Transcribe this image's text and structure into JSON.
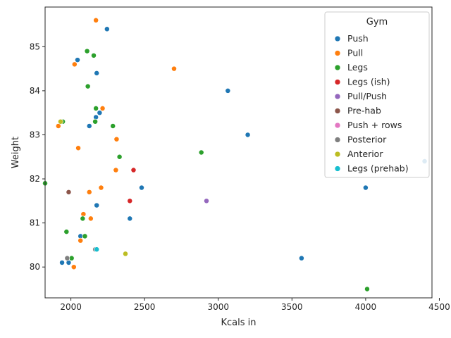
{
  "chart_data": {
    "type": "scatter",
    "xlabel": "Kcals in",
    "ylabel": "Weight",
    "xlim": [
      1825,
      4450
    ],
    "ylim": [
      79.3,
      85.9
    ],
    "xticks": [
      2000,
      2500,
      3000,
      3500,
      4000,
      4500
    ],
    "yticks": [
      80,
      81,
      82,
      83,
      84,
      85
    ],
    "grid": false,
    "legend": {
      "title": "Gym",
      "placement": "top-right"
    },
    "series": [
      {
        "name": "Push",
        "color": "#1f77b4",
        "points": [
          [
            2245,
            85.4
          ],
          [
            2045,
            84.7
          ],
          [
            2175,
            84.4
          ],
          [
            3065,
            84.0
          ],
          [
            2195,
            83.5
          ],
          [
            2170,
            83.4
          ],
          [
            2125,
            83.2
          ],
          [
            3200,
            83.0
          ],
          [
            4400,
            82.4
          ],
          [
            2480,
            81.8
          ],
          [
            4000,
            81.8
          ],
          [
            2175,
            81.4
          ],
          [
            2400,
            81.1
          ],
          [
            2065,
            80.7
          ],
          [
            1940,
            80.1
          ],
          [
            1985,
            80.1
          ],
          [
            3565,
            80.2
          ]
        ]
      },
      {
        "name": "Pull",
        "color": "#ff7f0e",
        "points": [
          [
            2170,
            85.6
          ],
          [
            2025,
            84.6
          ],
          [
            2700,
            84.5
          ],
          [
            2215,
            83.6
          ],
          [
            1915,
            83.2
          ],
          [
            2310,
            82.9
          ],
          [
            2050,
            82.7
          ],
          [
            2305,
            82.2
          ],
          [
            2205,
            81.8
          ],
          [
            2125,
            81.7
          ],
          [
            2085,
            81.2
          ],
          [
            2135,
            81.1
          ],
          [
            2065,
            80.6
          ],
          [
            2020,
            80.0
          ]
        ]
      },
      {
        "name": "Legs",
        "color": "#2ca02c",
        "points": [
          [
            2110,
            84.9
          ],
          [
            2155,
            84.8
          ],
          [
            2115,
            84.1
          ],
          [
            2170,
            83.6
          ],
          [
            2165,
            83.3
          ],
          [
            2285,
            83.2
          ],
          [
            1945,
            83.3
          ],
          [
            2885,
            82.6
          ],
          [
            2330,
            82.5
          ],
          [
            1825,
            81.9
          ],
          [
            2080,
            81.1
          ],
          [
            1970,
            80.8
          ],
          [
            2095,
            80.7
          ],
          [
            2005,
            80.2
          ],
          [
            4010,
            79.5
          ]
        ]
      },
      {
        "name": "Legs (ish)",
        "color": "#d62728",
        "points": [
          [
            2425,
            82.2
          ],
          [
            2400,
            81.5
          ]
        ]
      },
      {
        "name": "Pull/Push",
        "color": "#9467bd",
        "points": [
          [
            2920,
            81.5
          ]
        ]
      },
      {
        "name": "Pre-hab",
        "color": "#8c564b",
        "points": [
          [
            1985,
            81.7
          ]
        ]
      },
      {
        "name": "Push + rows",
        "color": "#e377c2",
        "points": []
      },
      {
        "name": "Posterior",
        "color": "#7f7f7f",
        "points": [
          [
            1975,
            80.2
          ],
          [
            2165,
            80.4
          ]
        ]
      },
      {
        "name": "Anterior",
        "color": "#bcbd22",
        "points": [
          [
            1930,
            83.3
          ],
          [
            2370,
            80.3
          ]
        ]
      },
      {
        "name": "Legs (prehab)",
        "color": "#17becf",
        "points": [
          [
            2175,
            80.4
          ]
        ]
      }
    ]
  }
}
